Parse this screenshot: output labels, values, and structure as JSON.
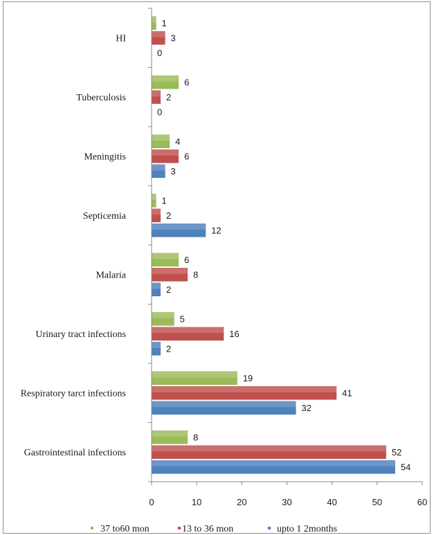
{
  "chart_data": {
    "type": "bar",
    "orientation": "horizontal",
    "categories": [
      "HI",
      "Tuberculosis",
      "Meningitis",
      "Septicemia",
      "Malaria",
      "Urinary tract infections",
      "Respiratory  tarct  infections",
      "Gastrointestinal  infections"
    ],
    "series": [
      {
        "name": "37 to60 mon",
        "color": "#9bbb59",
        "values": [
          1,
          6,
          4,
          1,
          6,
          5,
          19,
          8
        ]
      },
      {
        "name": "13 to 36 mon",
        "color": "#c0504d",
        "values": [
          3,
          2,
          6,
          2,
          8,
          16,
          41,
          52
        ]
      },
      {
        "name": "upto 1 2months",
        "color": "#4f81bd",
        "values": [
          0,
          0,
          3,
          12,
          2,
          2,
          32,
          54
        ]
      }
    ],
    "xlim": [
      0,
      60
    ],
    "xticks": [
      0,
      10,
      20,
      30,
      40,
      50,
      60
    ],
    "grid": false,
    "legend_position": "bottom",
    "title": "",
    "xlabel": "",
    "ylabel": ""
  }
}
